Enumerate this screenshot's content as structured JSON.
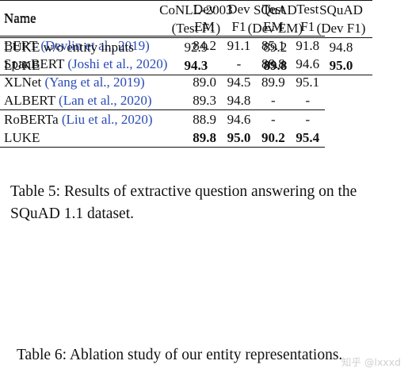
{
  "table5": {
    "headers": {
      "name": "Name",
      "cols": [
        {
          "l1": "Dev",
          "l2": "EM"
        },
        {
          "l1": "Dev",
          "l2": "F1"
        },
        {
          "l1": "Test",
          "l2": "EM"
        },
        {
          "l1": "Test",
          "l2": "F1"
        }
      ]
    },
    "rows": [
      {
        "model": "BERT",
        "cite": "(Devlin et al., 2019)",
        "dev_em": "84.2",
        "dev_f1": "91.1",
        "test_em": "85.1",
        "test_f1": "91.8"
      },
      {
        "model": "SpanBERT",
        "cite": "(Joshi et al., 2020)",
        "dev_em": "-",
        "dev_f1": "-",
        "test_em": "88.8",
        "test_f1": "94.6"
      },
      {
        "model": "XLNet",
        "cite": "(Yang et al., 2019)",
        "dev_em": "89.0",
        "dev_f1": "94.5",
        "test_em": "89.9",
        "test_f1": "95.1"
      },
      {
        "model": "ALBERT",
        "cite": "(Lan et al., 2020)",
        "dev_em": "89.3",
        "dev_f1": "94.8",
        "test_em": "-",
        "test_f1": "-"
      },
      {
        "model": "RoBERTa",
        "cite": "(Liu et al., 2020)",
        "dev_em": "88.9",
        "dev_f1": "94.6",
        "test_em": "-",
        "test_f1": "-"
      },
      {
        "model": "LUKE",
        "cite": "",
        "dev_em": "89.8",
        "dev_f1": "95.0",
        "test_em": "90.2",
        "test_f1": "95.4"
      }
    ],
    "caption": "Table 5: Results of extractive question answering on the SQuAD 1.1 dataset."
  },
  "table6": {
    "headers": {
      "name": "Name",
      "cols": [
        {
          "l1": "CoNLL-2003",
          "l2": "(Test F1)"
        },
        {
          "l1": "SQuAD",
          "l2": "(Dev EM)"
        },
        {
          "l1": "SQuAD",
          "l2": "(Dev F1)"
        }
      ]
    },
    "rows": [
      {
        "name": "LUKE w/o entity inputs",
        "conll": "92.9",
        "squad_em": "89.2",
        "squad_f1": "94.8"
      },
      {
        "name": "LUKE",
        "conll": "94.3",
        "squad_em": "89.8",
        "squad_f1": "95.0"
      }
    ],
    "caption": "Table 6: Ablation study of our entity representations."
  },
  "watermark": "知乎 @lxxxd"
}
